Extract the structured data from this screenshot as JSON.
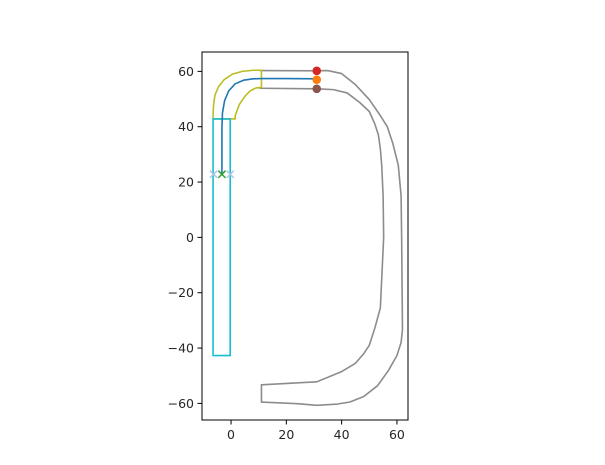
{
  "chart_data": {
    "type": "line",
    "title": "",
    "xlabel": "",
    "ylabel": "",
    "xlim": [
      -10.5,
      64
    ],
    "ylim": [
      -66,
      67
    ],
    "xticks": [
      0,
      20,
      40,
      60
    ],
    "yticks": [
      -60,
      -40,
      -20,
      0,
      20,
      40,
      60
    ],
    "xtick_labels": [
      "0",
      "20",
      "40",
      "60"
    ],
    "ytick_labels": [
      "−60",
      "−40",
      "−20",
      "0",
      "20",
      "40",
      "60"
    ],
    "grid": false,
    "legend": "none",
    "series": [
      {
        "id": "road-outer",
        "style": "line",
        "color": "#8c8c8c",
        "x": [
          10.5,
          31,
          35,
          40,
          45,
          50,
          54,
          56.5,
          58.5,
          60.5,
          61.5,
          61.7,
          62,
          61.5,
          60,
          57,
          53,
          48,
          43,
          38,
          31,
          24,
          11
        ],
        "y": [
          60.3,
          60.2,
          60.3,
          59.2,
          55.2,
          49.8,
          44,
          40,
          34,
          26,
          15,
          0,
          -33.3,
          -38,
          -42.7,
          -48,
          -53.6,
          -57.5,
          -59.5,
          -60.3,
          -60.7,
          -60.1,
          -59.5
        ]
      },
      {
        "id": "road-inner",
        "style": "line",
        "color": "#8c8c8c",
        "x": [
          10.5,
          31,
          37,
          42,
          46.5,
          50,
          52,
          53.3,
          54,
          54.5,
          55,
          55.2,
          54,
          52,
          50,
          48,
          45,
          40,
          31,
          11
        ],
        "y": [
          53.9,
          53.7,
          53.4,
          52.2,
          48.8,
          45.5,
          41,
          37,
          32,
          26,
          15,
          0,
          -25.5,
          -32.8,
          -39,
          -42,
          -45.5,
          -48.5,
          -52.2,
          -53.3
        ]
      },
      {
        "id": "road-end-cap",
        "style": "line",
        "color": "#8c8c8c",
        "x": [
          11,
          11
        ],
        "y": [
          -53.3,
          -59.5
        ]
      },
      {
        "id": "route-envelope",
        "style": "line",
        "color": "#bcbd22",
        "x": [
          11,
          8,
          4,
          0.5,
          -2.5,
          -4.5,
          -5.8,
          -6.3,
          -6.5,
          -6.5,
          1.5,
          1.5,
          3,
          5,
          7,
          9,
          11,
          11,
          11
        ],
        "y": [
          60.4,
          60.4,
          60,
          59,
          57,
          54.5,
          51.5,
          48,
          44,
          42.8,
          42.8,
          44,
          48,
          51,
          53,
          54,
          54.2,
          60.4,
          54.2
        ]
      },
      {
        "id": "lane-box",
        "style": "line",
        "color": "#17becf",
        "x": [
          -6.5,
          -0.3,
          -0.3,
          -6.5,
          -6.5
        ],
        "y": [
          42.8,
          42.8,
          -42.7,
          -42.7,
          42.8
        ]
      },
      {
        "id": "planned-path",
        "style": "line",
        "color": "#1f77b4",
        "x": [
          -3.3,
          -3.3,
          -3.1,
          -2.3,
          -0.8,
          1.5,
          4.5,
          8,
          11,
          20,
          31
        ],
        "y": [
          22.8,
          39,
          45,
          49.5,
          53,
          55.5,
          56.8,
          57.3,
          57.4,
          57.4,
          57.3
        ]
      },
      {
        "id": "goal-start",
        "style": "scatter",
        "marker": "circle",
        "color": "#d62728",
        "x": [
          31
        ],
        "y": [
          60.2
        ]
      },
      {
        "id": "goal-mid",
        "style": "scatter",
        "marker": "circle",
        "color": "#ff7f0e",
        "x": [
          31
        ],
        "y": [
          57
        ]
      },
      {
        "id": "goal-end",
        "style": "scatter",
        "marker": "circle",
        "color": "#8c564b",
        "x": [
          31
        ],
        "y": [
          53.7
        ]
      },
      {
        "id": "start-left",
        "style": "scatter",
        "marker": "x",
        "color": "#aec7e8",
        "x": [
          -6.3
        ],
        "y": [
          22.8
        ]
      },
      {
        "id": "start-right",
        "style": "scatter",
        "marker": "x",
        "color": "#aec7e8",
        "x": [
          -0.3
        ],
        "y": [
          22.8
        ]
      },
      {
        "id": "start-center",
        "style": "scatter",
        "marker": "x",
        "color": "#2ca02c",
        "x": [
          -3.3
        ],
        "y": [
          22.8
        ]
      }
    ]
  }
}
